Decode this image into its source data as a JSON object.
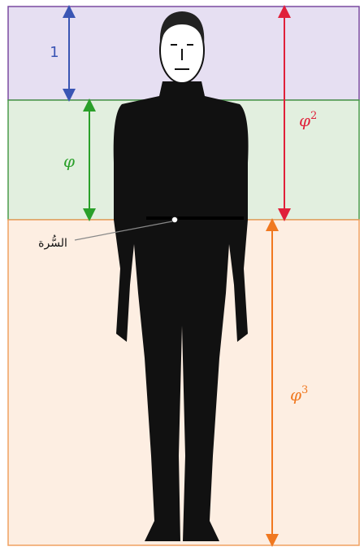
{
  "labels": {
    "head": {
      "symbol": "1"
    },
    "torso": {
      "symbol": "φ"
    },
    "upper": {
      "symbol": "φ",
      "exponent": "2"
    },
    "lower": {
      "symbol": "φ",
      "exponent": "3"
    },
    "navel": {
      "text": "السُّرة"
    }
  }
}
